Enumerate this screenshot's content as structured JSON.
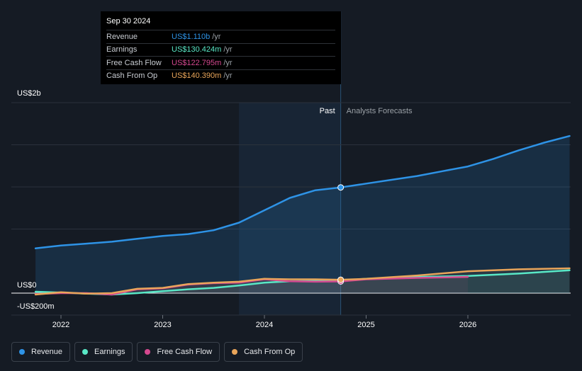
{
  "chart_data": {
    "type": "line",
    "y_axis_labels": {
      "top": "US$2b",
      "zero": "US$0",
      "bottom": "-US$200m"
    },
    "ylim": [
      -200000000,
      2000000000
    ],
    "x_ticks": [
      "2022",
      "2023",
      "2024",
      "2025",
      "2026"
    ],
    "period_labels": {
      "past": "Past",
      "forecast": "Analysts Forecasts"
    },
    "tooltip": {
      "date": "Sep 30 2024",
      "unit": "/yr",
      "rows": [
        {
          "label": "Revenue",
          "value": "US$1.110b",
          "color": "#2e93e6"
        },
        {
          "label": "Earnings",
          "value": "US$130.424m",
          "color": "#59e8c6"
        },
        {
          "label": "Free Cash Flow",
          "value": "US$122.795m",
          "color": "#d5488f"
        },
        {
          "label": "Cash From Op",
          "value": "US$140.390m",
          "color": "#e9a55a"
        }
      ]
    },
    "series": [
      {
        "name": "Revenue",
        "color": "#2e93e6",
        "x": [
          2021.75,
          2022.0,
          2022.25,
          2022.5,
          2022.75,
          2023.0,
          2023.25,
          2023.5,
          2023.75,
          2024.0,
          2024.25,
          2024.5,
          2024.75,
          2025.0,
          2025.5,
          2025.75,
          2026.0,
          2026.25,
          2026.5,
          2026.75,
          2027.0
        ],
        "values": [
          470000000,
          500000000,
          520000000,
          540000000,
          570000000,
          600000000,
          620000000,
          660000000,
          740000000,
          870000000,
          1000000000,
          1080000000,
          1110000000,
          1150000000,
          1230000000,
          1280000000,
          1330000000,
          1410000000,
          1500000000,
          1580000000,
          1650000000
        ]
      },
      {
        "name": "Earnings",
        "color": "#59e8c6",
        "x": [
          2021.75,
          2022.0,
          2022.25,
          2022.5,
          2022.75,
          2023.0,
          2023.25,
          2023.5,
          2023.75,
          2024.0,
          2024.25,
          2024.5,
          2024.75,
          2025.0,
          2025.5,
          2026.0,
          2026.5,
          2027.0
        ],
        "values": [
          15000000,
          5000000,
          -5000000,
          -15000000,
          0,
          20000000,
          40000000,
          55000000,
          80000000,
          110000000,
          125000000,
          128000000,
          130424000,
          150000000,
          170000000,
          180000000,
          205000000,
          240000000
        ]
      },
      {
        "name": "Free Cash Flow",
        "color": "#d5488f",
        "x": [
          2021.75,
          2022.0,
          2022.25,
          2022.5,
          2022.75,
          2023.0,
          2023.25,
          2023.5,
          2023.75,
          2024.0,
          2024.25,
          2024.5,
          2024.75,
          2025.0,
          2025.5,
          2026.0
        ],
        "values": [
          -10000000,
          0,
          0,
          -15000000,
          40000000,
          50000000,
          90000000,
          105000000,
          110000000,
          145000000,
          125000000,
          120000000,
          122795000,
          145000000,
          160000000,
          170000000
        ]
      },
      {
        "name": "Cash From Op",
        "color": "#e9a55a",
        "x": [
          2021.75,
          2022.0,
          2022.25,
          2022.5,
          2022.75,
          2023.0,
          2023.25,
          2023.5,
          2023.75,
          2024.0,
          2024.25,
          2024.5,
          2024.75,
          2025.0,
          2025.5,
          2026.0,
          2026.5,
          2027.0
        ],
        "values": [
          -15000000,
          10000000,
          -5000000,
          0,
          45000000,
          55000000,
          95000000,
          110000000,
          120000000,
          150000000,
          145000000,
          145000000,
          140390000,
          150000000,
          185000000,
          230000000,
          250000000,
          260000000
        ]
      }
    ],
    "legend": [
      {
        "name": "Revenue",
        "color": "#2e93e6"
      },
      {
        "name": "Earnings",
        "color": "#59e8c6"
      },
      {
        "name": "Free Cash Flow",
        "color": "#d5488f"
      },
      {
        "name": "Cash From Op",
        "color": "#e9a55a"
      }
    ]
  }
}
